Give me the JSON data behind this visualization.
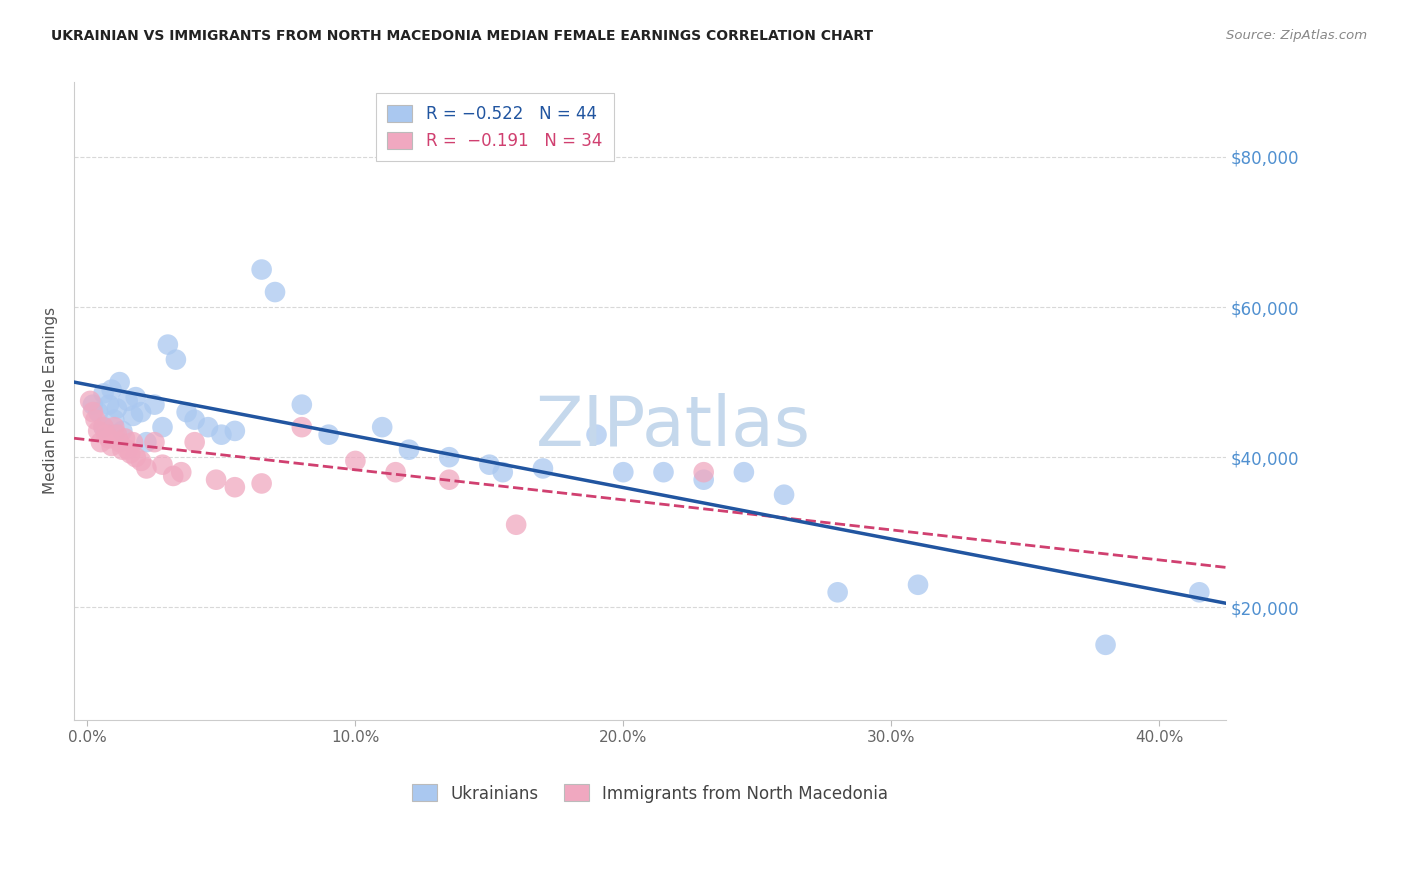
{
  "title": "UKRAINIAN VS IMMIGRANTS FROM NORTH MACEDONIA MEDIAN FEMALE EARNINGS CORRELATION CHART",
  "source": "Source: ZipAtlas.com",
  "ylabel": "Median Female Earnings",
  "xlabel_ticks": [
    "0.0%",
    "10.0%",
    "20.0%",
    "30.0%",
    "40.0%"
  ],
  "xlabel_tick_values": [
    0.0,
    0.1,
    0.2,
    0.3,
    0.4
  ],
  "ylabel_right_labels": [
    "$20,000",
    "$40,000",
    "$60,000",
    "$80,000"
  ],
  "ylabel_tick_values": [
    20000,
    40000,
    60000,
    80000
  ],
  "xlim": [
    -0.005,
    0.425
  ],
  "ylim": [
    5000,
    90000
  ],
  "legend_label_blue": "Ukrainians",
  "legend_label_pink": "Immigrants from North Macedonia",
  "blue_x": [
    0.002,
    0.004,
    0.006,
    0.006,
    0.008,
    0.009,
    0.01,
    0.011,
    0.012,
    0.013,
    0.015,
    0.017,
    0.018,
    0.02,
    0.022,
    0.025,
    0.028,
    0.03,
    0.033,
    0.037,
    0.04,
    0.045,
    0.05,
    0.055,
    0.065,
    0.07,
    0.08,
    0.09,
    0.11,
    0.12,
    0.135,
    0.15,
    0.155,
    0.17,
    0.19,
    0.2,
    0.215,
    0.23,
    0.245,
    0.26,
    0.28,
    0.31,
    0.38,
    0.415
  ],
  "blue_y": [
    47000,
    46000,
    48500,
    44000,
    47000,
    49000,
    45000,
    46500,
    50000,
    43500,
    47500,
    45500,
    48000,
    46000,
    42000,
    47000,
    44000,
    55000,
    53000,
    46000,
    45000,
    44000,
    43000,
    43500,
    65000,
    62000,
    47000,
    43000,
    44000,
    41000,
    40000,
    39000,
    38000,
    38500,
    43000,
    38000,
    38000,
    37000,
    38000,
    35000,
    22000,
    23000,
    15000,
    22000
  ],
  "pink_x": [
    0.001,
    0.002,
    0.003,
    0.004,
    0.005,
    0.006,
    0.007,
    0.008,
    0.009,
    0.01,
    0.011,
    0.012,
    0.013,
    0.014,
    0.015,
    0.016,
    0.017,
    0.018,
    0.02,
    0.022,
    0.025,
    0.028,
    0.032,
    0.035,
    0.04,
    0.048,
    0.055,
    0.065,
    0.08,
    0.1,
    0.115,
    0.135,
    0.16,
    0.23
  ],
  "pink_y": [
    47500,
    46000,
    45000,
    43500,
    42000,
    44000,
    43000,
    42500,
    41500,
    44000,
    43000,
    42000,
    41000,
    42500,
    41000,
    40500,
    42000,
    40000,
    39500,
    38500,
    42000,
    39000,
    37500,
    38000,
    42000,
    37000,
    36000,
    36500,
    44000,
    39500,
    38000,
    37000,
    31000,
    38000
  ],
  "blue_line_color": "#2155a0",
  "pink_line_color": "#d04070",
  "blue_scatter_facecolor": "#aac8f0",
  "pink_scatter_facecolor": "#f0a8c0",
  "grid_color": "#d8d8d8",
  "right_label_color": "#5090d0",
  "watermark_color": "#c5d8ec",
  "background_color": "#ffffff",
  "title_color": "#222222",
  "source_color": "#888888",
  "axis_label_color": "#555555",
  "tick_color": "#666666"
}
